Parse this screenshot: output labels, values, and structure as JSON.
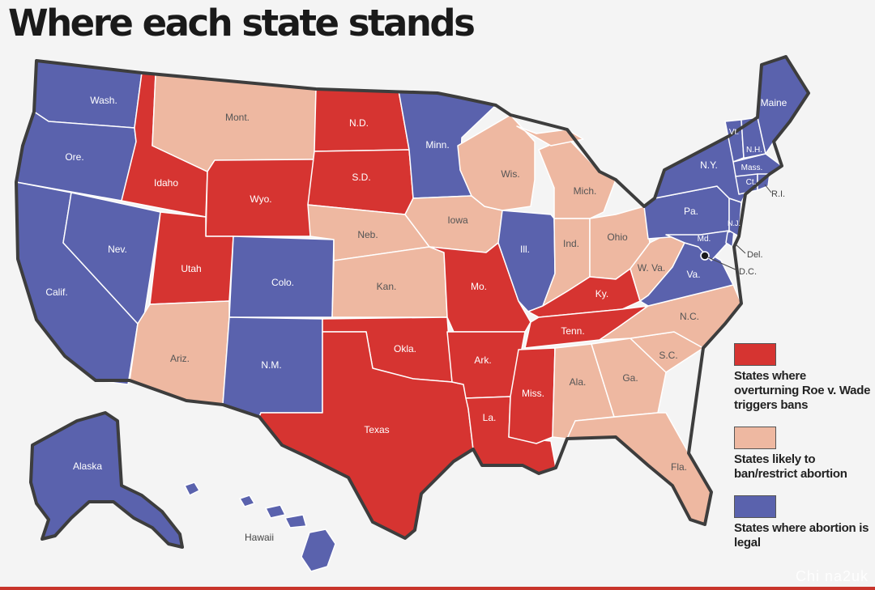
{
  "title": "Where each state stands",
  "colors": {
    "ban_trigger": "#d63431",
    "likely_restrict": "#eeb8a1",
    "legal": "#5a62ad",
    "outline": "#3d3d3d",
    "background": "#f4f4f4",
    "bottom_bar": "#c8342b"
  },
  "legend": [
    {
      "category": "ban_trigger",
      "label": "States where overturning Roe v. Wade triggers bans"
    },
    {
      "category": "likely_restrict",
      "label": "States likely to ban/restrict abortion"
    },
    {
      "category": "legal",
      "label": "States where abortion is legal"
    }
  ],
  "states": {
    "wa": {
      "label": "Wash.",
      "category": "legal"
    },
    "or": {
      "label": "Ore.",
      "category": "legal"
    },
    "ca": {
      "label": "Calif.",
      "category": "legal"
    },
    "nv": {
      "label": "Nev.",
      "category": "legal"
    },
    "id": {
      "label": "Idaho",
      "category": "ban_trigger"
    },
    "mt": {
      "label": "Mont.",
      "category": "likely_restrict"
    },
    "wy": {
      "label": "Wyo.",
      "category": "ban_trigger"
    },
    "ut": {
      "label": "Utah",
      "category": "ban_trigger"
    },
    "co": {
      "label": "Colo.",
      "category": "legal"
    },
    "az": {
      "label": "Ariz.",
      "category": "likely_restrict"
    },
    "nm": {
      "label": "N.M.",
      "category": "legal"
    },
    "nd": {
      "label": "N.D.",
      "category": "ban_trigger"
    },
    "sd": {
      "label": "S.D.",
      "category": "ban_trigger"
    },
    "ne": {
      "label": "Neb.",
      "category": "likely_restrict"
    },
    "ks": {
      "label": "Kan.",
      "category": "likely_restrict"
    },
    "ok": {
      "label": "Okla.",
      "category": "ban_trigger"
    },
    "tx": {
      "label": "Texas",
      "category": "ban_trigger"
    },
    "mn": {
      "label": "Minn.",
      "category": "legal"
    },
    "ia": {
      "label": "Iowa",
      "category": "likely_restrict"
    },
    "mo": {
      "label": "Mo.",
      "category": "ban_trigger"
    },
    "ar": {
      "label": "Ark.",
      "category": "ban_trigger"
    },
    "la": {
      "label": "La.",
      "category": "ban_trigger"
    },
    "wi": {
      "label": "Wis.",
      "category": "likely_restrict"
    },
    "il": {
      "label": "Ill.",
      "category": "legal"
    },
    "mi": {
      "label": "Mich.",
      "category": "likely_restrict"
    },
    "in": {
      "label": "Ind.",
      "category": "likely_restrict"
    },
    "oh": {
      "label": "Ohio",
      "category": "likely_restrict"
    },
    "ky": {
      "label": "Ky.",
      "category": "ban_trigger"
    },
    "tn": {
      "label": "Tenn.",
      "category": "ban_trigger"
    },
    "ms": {
      "label": "Miss.",
      "category": "ban_trigger"
    },
    "al": {
      "label": "Ala.",
      "category": "likely_restrict"
    },
    "ga": {
      "label": "Ga.",
      "category": "likely_restrict"
    },
    "fl": {
      "label": "Fla.",
      "category": "likely_restrict"
    },
    "sc": {
      "label": "S.C.",
      "category": "likely_restrict"
    },
    "nc": {
      "label": "N.C.",
      "category": "likely_restrict"
    },
    "wv": {
      "label": "W. Va.",
      "category": "likely_restrict"
    },
    "va": {
      "label": "Va.",
      "category": "legal"
    },
    "pa": {
      "label": "Pa.",
      "category": "legal"
    },
    "ny": {
      "label": "N.Y.",
      "category": "legal"
    },
    "me": {
      "label": "Maine",
      "category": "legal"
    },
    "vt": {
      "label": "Vt.",
      "category": "legal"
    },
    "nh": {
      "label": "N.H.",
      "category": "legal"
    },
    "ma": {
      "label": "Mass.",
      "category": "legal"
    },
    "ct": {
      "label": "Ct.",
      "category": "legal"
    },
    "ri": {
      "label": "R.I.",
      "category": "legal"
    },
    "nj": {
      "label": "N.J.",
      "category": "legal"
    },
    "de": {
      "label": "Del.",
      "category": "legal"
    },
    "md": {
      "label": "Md.",
      "category": "legal"
    },
    "dc": {
      "label": "D.C.",
      "category": "legal"
    },
    "ak": {
      "label": "Alaska",
      "category": "legal"
    },
    "hi": {
      "label": "Hawaii",
      "category": "legal"
    }
  },
  "watermark": "Chi  na2uk"
}
